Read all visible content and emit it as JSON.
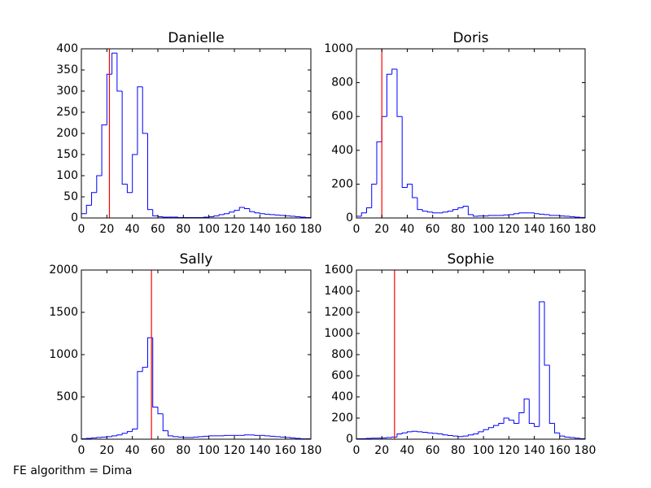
{
  "chart_data": [
    {
      "type": "histogram",
      "title": "Danielle",
      "color": "#0000ff",
      "threshold": 22,
      "threshold_color": "#ff0000",
      "bins": [
        0,
        4,
        8,
        12,
        16,
        20,
        24,
        28,
        32,
        36,
        40,
        44,
        48,
        52,
        56,
        60,
        64,
        68,
        72,
        76,
        80,
        84,
        88,
        92,
        96,
        100,
        104,
        108,
        112,
        116,
        120,
        124,
        128,
        132,
        136,
        140,
        144,
        148,
        152,
        156,
        160,
        164,
        168,
        172,
        176,
        180
      ],
      "values": [
        10,
        30,
        60,
        100,
        220,
        340,
        390,
        300,
        80,
        60,
        150,
        310,
        200,
        20,
        5,
        3,
        2,
        2,
        2,
        1,
        1,
        1,
        1,
        1,
        2,
        3,
        5,
        8,
        10,
        14,
        18,
        25,
        22,
        15,
        12,
        10,
        9,
        8,
        7,
        6,
        5,
        4,
        3,
        2,
        1
      ],
      "xlim": [
        0,
        180
      ],
      "xticks": [
        0,
        20,
        40,
        60,
        80,
        100,
        120,
        140,
        160,
        180
      ],
      "ylim": [
        0,
        400
      ],
      "yticks": [
        0,
        50,
        100,
        150,
        200,
        250,
        300,
        350,
        400
      ]
    },
    {
      "type": "histogram",
      "title": "Doris",
      "color": "#0000ff",
      "threshold": 20,
      "threshold_color": "#ff0000",
      "bins": [
        0,
        4,
        8,
        12,
        16,
        20,
        24,
        28,
        32,
        36,
        40,
        44,
        48,
        52,
        56,
        60,
        64,
        68,
        72,
        76,
        80,
        84,
        88,
        92,
        96,
        100,
        104,
        108,
        112,
        116,
        120,
        124,
        128,
        132,
        136,
        140,
        144,
        148,
        152,
        156,
        160,
        164,
        168,
        172,
        176,
        180
      ],
      "values": [
        10,
        30,
        60,
        200,
        450,
        600,
        850,
        880,
        600,
        180,
        200,
        120,
        50,
        40,
        35,
        30,
        30,
        35,
        40,
        50,
        60,
        70,
        20,
        10,
        12,
        12,
        15,
        15,
        15,
        18,
        20,
        25,
        30,
        30,
        30,
        25,
        22,
        20,
        15,
        15,
        12,
        10,
        8,
        5,
        3
      ],
      "xlim": [
        0,
        180
      ],
      "xticks": [
        0,
        20,
        40,
        60,
        80,
        100,
        120,
        140,
        160,
        180
      ],
      "ylim": [
        0,
        1000
      ],
      "yticks": [
        0,
        200,
        400,
        600,
        800,
        1000
      ]
    },
    {
      "type": "histogram",
      "title": "Sally",
      "color": "#0000ff",
      "threshold": 55,
      "threshold_color": "#ff0000",
      "bins": [
        0,
        4,
        8,
        12,
        16,
        20,
        24,
        28,
        32,
        36,
        40,
        44,
        48,
        52,
        56,
        60,
        64,
        68,
        72,
        76,
        80,
        84,
        88,
        92,
        96,
        100,
        104,
        108,
        112,
        116,
        120,
        124,
        128,
        132,
        136,
        140,
        144,
        148,
        152,
        156,
        160,
        164,
        168,
        172,
        176,
        180
      ],
      "values": [
        5,
        10,
        15,
        20,
        25,
        30,
        40,
        50,
        70,
        90,
        120,
        800,
        850,
        1200,
        380,
        300,
        100,
        40,
        30,
        25,
        20,
        20,
        25,
        30,
        35,
        40,
        40,
        40,
        45,
        45,
        45,
        45,
        50,
        50,
        45,
        45,
        40,
        35,
        30,
        25,
        20,
        15,
        10,
        5,
        5
      ],
      "xlim": [
        0,
        180
      ],
      "xticks": [
        0,
        20,
        40,
        60,
        80,
        100,
        120,
        140,
        160,
        180
      ],
      "ylim": [
        0,
        2000
      ],
      "yticks": [
        0,
        500,
        1000,
        1500,
        2000
      ]
    },
    {
      "type": "histogram",
      "title": "Sophie",
      "color": "#0000ff",
      "threshold": 30,
      "threshold_color": "#ff0000",
      "bins": [
        0,
        4,
        8,
        12,
        16,
        20,
        24,
        28,
        32,
        36,
        40,
        44,
        48,
        52,
        56,
        60,
        64,
        68,
        72,
        76,
        80,
        84,
        88,
        92,
        96,
        100,
        104,
        108,
        112,
        116,
        120,
        124,
        128,
        132,
        136,
        140,
        144,
        148,
        152,
        156,
        160,
        164,
        168,
        172,
        176,
        180
      ],
      "values": [
        5,
        5,
        8,
        10,
        10,
        12,
        15,
        20,
        50,
        60,
        70,
        75,
        70,
        65,
        60,
        55,
        50,
        40,
        35,
        30,
        25,
        30,
        40,
        50,
        70,
        90,
        110,
        130,
        150,
        200,
        180,
        150,
        250,
        380,
        150,
        120,
        1300,
        700,
        150,
        60,
        30,
        20,
        15,
        10,
        5
      ],
      "xlim": [
        0,
        180
      ],
      "xticks": [
        0,
        20,
        40,
        60,
        80,
        100,
        120,
        140,
        160,
        180
      ],
      "ylim": [
        0,
        1600
      ],
      "yticks": [
        0,
        200,
        400,
        600,
        800,
        1000,
        1200,
        1400,
        1600
      ]
    }
  ],
  "footnote": "FE algorithm = Dima"
}
